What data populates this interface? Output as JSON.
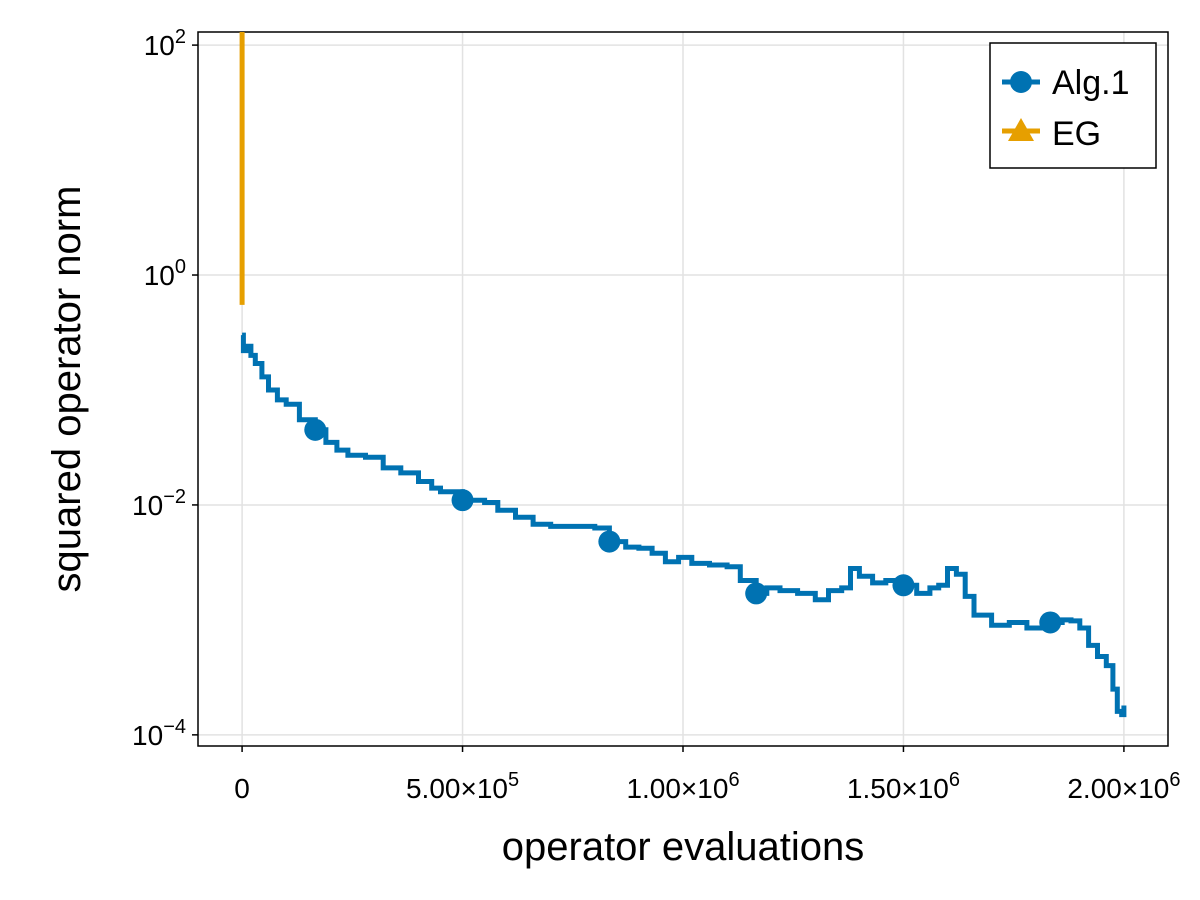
{
  "chart_data": {
    "type": "line",
    "title": "",
    "xlabel": "operator evaluations",
    "ylabel": "squared operator norm",
    "xscale": "linear",
    "yscale": "log10",
    "xlim": [
      -100000,
      2100000
    ],
    "ylim": [
      8e-05,
      130
    ],
    "grid": true,
    "legend_position": "top-right",
    "x_ticks": [
      {
        "value": 0,
        "label": "0",
        "sup": ""
      },
      {
        "value": 500000,
        "label": "5.00×10",
        "sup": "5"
      },
      {
        "value": 1000000,
        "label": "1.00×10",
        "sup": "6"
      },
      {
        "value": 1500000,
        "label": "1.50×10",
        "sup": "6"
      },
      {
        "value": 2000000,
        "label": "2.00×10",
        "sup": "6"
      }
    ],
    "y_ticks": [
      {
        "value": 0.0001,
        "label": "10",
        "sup": "−4"
      },
      {
        "value": 0.01,
        "label": "10",
        "sup": "−2"
      },
      {
        "value": 1,
        "label": "10",
        "sup": "0"
      },
      {
        "value": 100,
        "label": "10",
        "sup": "2"
      }
    ],
    "series": [
      {
        "name": "Alg.1",
        "color": "#0072B2",
        "marker": "circle",
        "x": [
          0,
          3000,
          10000,
          20000,
          30000,
          45000,
          60000,
          80000,
          100000,
          130000,
          166000,
          190000,
          215000,
          240000,
          280000,
          320000,
          360000,
          400000,
          430000,
          450000,
          500000,
          550000,
          580000,
          620000,
          660000,
          700000,
          740000,
          780000,
          800000,
          833000,
          870000,
          900000,
          930000,
          960000,
          990000,
          1020000,
          1060000,
          1100000,
          1130000,
          1166000,
          1190000,
          1220000,
          1260000,
          1300000,
          1330000,
          1360000,
          1380000,
          1400000,
          1430000,
          1460000,
          1500000,
          1530000,
          1560000,
          1580000,
          1600000,
          1620000,
          1640000,
          1660000,
          1700000,
          1740000,
          1780000,
          1833000,
          1860000,
          1880000,
          1900000,
          1920000,
          1940000,
          1960000,
          1975000,
          1985000,
          1995000,
          2000000
        ],
        "y": [
          0.3,
          0.22,
          0.24,
          0.2,
          0.17,
          0.13,
          0.1,
          0.082,
          0.075,
          0.055,
          0.045,
          0.035,
          0.03,
          0.027,
          0.026,
          0.021,
          0.019,
          0.016,
          0.014,
          0.013,
          0.011,
          0.0105,
          0.009,
          0.0078,
          0.0068,
          0.0065,
          0.0065,
          0.0065,
          0.0063,
          0.0048,
          0.0043,
          0.0042,
          0.0038,
          0.0032,
          0.0035,
          0.0031,
          0.003,
          0.0029,
          0.0022,
          0.0017,
          0.0019,
          0.0018,
          0.0017,
          0.0015,
          0.0018,
          0.0019,
          0.0028,
          0.0024,
          0.0021,
          0.0022,
          0.002,
          0.0017,
          0.0019,
          0.002,
          0.0028,
          0.0025,
          0.0016,
          0.0011,
          0.0009,
          0.00095,
          0.00085,
          0.00095,
          0.001,
          0.00098,
          0.00085,
          0.0006,
          0.00048,
          0.0004,
          0.00025,
          0.00016,
          0.00015,
          0.00018
        ],
        "markers_x": [
          166000,
          500000,
          833000,
          1166000,
          1500000,
          1833000
        ],
        "markers_y": [
          0.045,
          0.011,
          0.0048,
          0.0017,
          0.002,
          0.00095
        ]
      },
      {
        "name": "EG",
        "color": "#E69F00",
        "marker": "triangle",
        "x": [
          0,
          0
        ],
        "y": [
          130,
          0.55
        ],
        "markers_x": [],
        "markers_y": []
      }
    ]
  }
}
